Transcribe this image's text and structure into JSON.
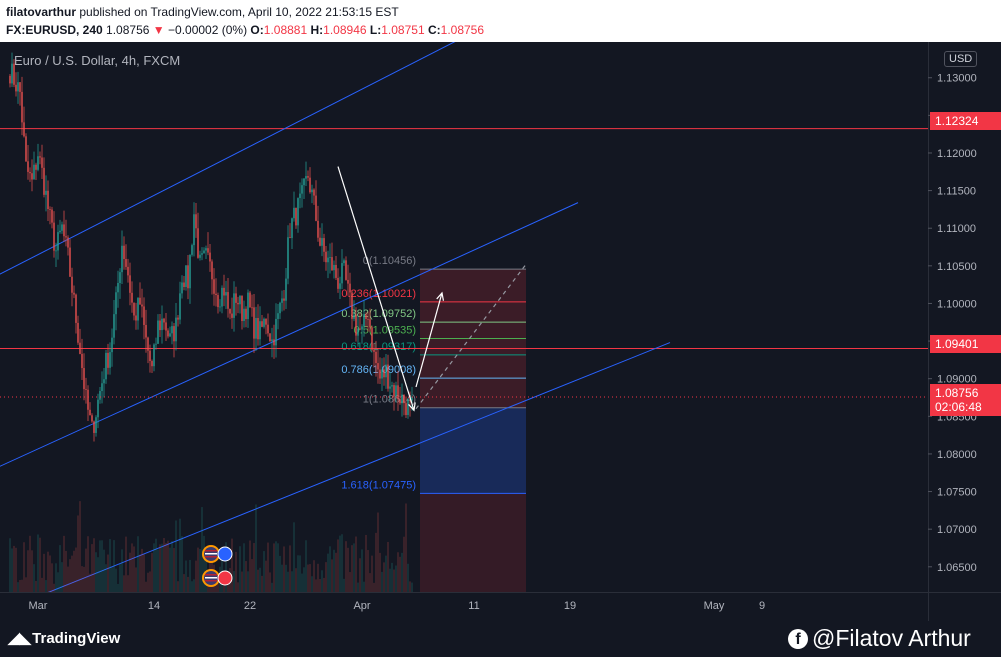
{
  "header": {
    "user": "filatovarthur",
    "published_text": "published on TradingView.com, April 10, 2022 21:53:15 EST",
    "symbol": "FX:EURUSD, 240",
    "last_price": "1.08756",
    "change": "−0.00002 (0%)",
    "open_label": "O:",
    "open_value": "1.08881",
    "high_label": "H:",
    "high_value": "1.08946",
    "low_label": "L:",
    "low_value": "1.08751",
    "close_label": "C:",
    "close_value": "1.08756"
  },
  "legend": {
    "title": "Euro / U.S. Dollar, 4h, FXCM"
  },
  "axis": {
    "currency": "USD"
  },
  "badges": {
    "resistance_upper": "1.12324",
    "resistance_lower": "1.09401",
    "last_price": "1.08756",
    "countdown": "02:06:48"
  },
  "footer": {
    "brand": "TradingView",
    "credit": "@Filatov Arthur"
  },
  "colors": {
    "background": "#131722",
    "candle_up": "#26a69a",
    "candle_down": "#ef5350",
    "channel_line": "#2962ff",
    "horizontal_line": "#f23645",
    "fib_zone_bear": "#f23645",
    "fib_zone_bull": "#2962ff"
  },
  "chart_data": {
    "type": "candlestick",
    "title": "Euro / U.S. Dollar, 4h, FXCM",
    "currency": "USD",
    "ylim": [
      1.061,
      1.134
    ],
    "y_ticks": [
      1.065,
      1.07,
      1.075,
      1.08,
      1.085,
      1.09,
      1.095,
      1.1,
      1.105,
      1.11,
      1.115,
      1.12,
      1.125,
      1.13
    ],
    "y_tick_labels": [
      "1.06500",
      "1.07000",
      "1.07500",
      "1.08000",
      "1.08500",
      "1.09000",
      "1.09500",
      "1.10000",
      "1.10500",
      "1.11000",
      "1.11500",
      "1.12000",
      "1.12500",
      "1.13000"
    ],
    "x_ticks": [
      {
        "label": "Mar",
        "bar": 14
      },
      {
        "label": "14",
        "bar": 72
      },
      {
        "label": "22",
        "bar": 120
      },
      {
        "label": "Apr",
        "bar": 176
      },
      {
        "label": "11",
        "bar": 232
      },
      {
        "label": "19",
        "bar": 280
      },
      {
        "label": "May",
        "bar": 352
      },
      {
        "label": "9",
        "bar": 376
      }
    ],
    "close_path": [
      [
        0,
        1.131
      ],
      [
        5,
        1.128
      ],
      [
        8,
        1.118
      ],
      [
        11,
        1.116
      ],
      [
        14,
        1.12
      ],
      [
        17,
        1.116
      ],
      [
        20,
        1.111
      ],
      [
        23,
        1.107
      ],
      [
        26,
        1.11
      ],
      [
        29,
        1.106
      ],
      [
        32,
        1.1
      ],
      [
        35,
        1.094
      ],
      [
        38,
        1.087
      ],
      [
        41,
        1.083
      ],
      [
        44,
        1.087
      ],
      [
        47,
        1.091
      ],
      [
        50,
        1.094
      ],
      [
        53,
        1.1
      ],
      [
        56,
        1.108
      ],
      [
        59,
        1.104
      ],
      [
        62,
        1.098
      ],
      [
        65,
        1.1
      ],
      [
        68,
        1.095
      ],
      [
        71,
        1.091
      ],
      [
        74,
        1.097
      ],
      [
        77,
        1.098
      ],
      [
        80,
        1.095
      ],
      [
        83,
        1.097
      ],
      [
        86,
        1.104
      ],
      [
        89,
        1.103
      ],
      [
        92,
        1.112
      ],
      [
        95,
        1.105
      ],
      [
        98,
        1.106
      ],
      [
        101,
        1.104
      ],
      [
        104,
        1.101
      ],
      [
        107,
        1.102
      ],
      [
        110,
        1.098
      ],
      [
        113,
        1.101
      ],
      [
        116,
        1.099
      ],
      [
        119,
        1.1
      ],
      [
        122,
        1.097
      ],
      [
        125,
        1.096
      ],
      [
        128,
        1.098
      ],
      [
        131,
        1.095
      ],
      [
        134,
        1.098
      ],
      [
        137,
        1.102
      ],
      [
        140,
        1.11
      ],
      [
        143,
        1.112
      ],
      [
        146,
        1.114
      ],
      [
        149,
        1.117
      ],
      [
        152,
        1.113
      ],
      [
        155,
        1.108
      ],
      [
        158,
        1.106
      ],
      [
        161,
        1.105
      ],
      [
        164,
        1.103
      ],
      [
        167,
        1.104
      ],
      [
        170,
        1.1
      ],
      [
        173,
        1.097
      ],
      [
        176,
        1.096
      ],
      [
        179,
        1.099
      ],
      [
        182,
        1.093
      ],
      [
        185,
        1.09
      ],
      [
        188,
        1.091
      ],
      [
        191,
        1.089
      ],
      [
        194,
        1.088
      ],
      [
        197,
        1.087
      ],
      [
        200,
        1.086
      ],
      [
        201,
        1.0876
      ]
    ],
    "channel_lines": [
      {
        "from": [
          -8,
          1.1035
        ],
        "to": [
          235,
          1.1365
        ]
      },
      {
        "from": [
          -8,
          1.078
        ],
        "to": [
          284,
          1.1134
        ]
      },
      {
        "from": [
          -8,
          1.0587
        ],
        "to": [
          330,
          1.0948
        ]
      }
    ],
    "horizontal_levels": [
      1.12324,
      1.09401
    ],
    "trend_arrow": {
      "from": [
        164,
        1.1182
      ],
      "to": [
        202,
        1.0858
      ]
    },
    "projection_arrow": {
      "from": [
        203,
        1.0889
      ],
      "to": [
        216,
        1.1014
      ]
    },
    "projection_dashed": {
      "from": [
        203,
        1.086
      ],
      "to": [
        258,
        1.1052
      ]
    },
    "fibonacci": {
      "x_range": [
        205,
        258
      ],
      "levels": [
        {
          "label": "0(1.10456)",
          "ratio": 0,
          "price": 1.10456,
          "color": "#787b86"
        },
        {
          "label": "0.236(1.10021)",
          "ratio": 0.236,
          "price": 1.10021,
          "color": "#f23645"
        },
        {
          "label": "0.382(1.09752)",
          "ratio": 0.382,
          "price": 1.09752,
          "color": "#81c784"
        },
        {
          "label": "0.5(1.09535)",
          "ratio": 0.5,
          "price": 1.09535,
          "color": "#4caf50"
        },
        {
          "label": "0.618(1.09317)",
          "ratio": 0.618,
          "price": 1.09317,
          "color": "#089981"
        },
        {
          "label": "0.786(1.09008)",
          "ratio": 0.786,
          "price": 1.09008,
          "color": "#64b5f6"
        },
        {
          "label": "1(1.08614)",
          "ratio": 1,
          "price": 1.08614,
          "color": "#787b86"
        },
        {
          "label": "1.618(1.07475)",
          "ratio": 1.618,
          "price": 1.07475,
          "color": "#2962ff"
        }
      ]
    },
    "last_price": 1.08756
  }
}
